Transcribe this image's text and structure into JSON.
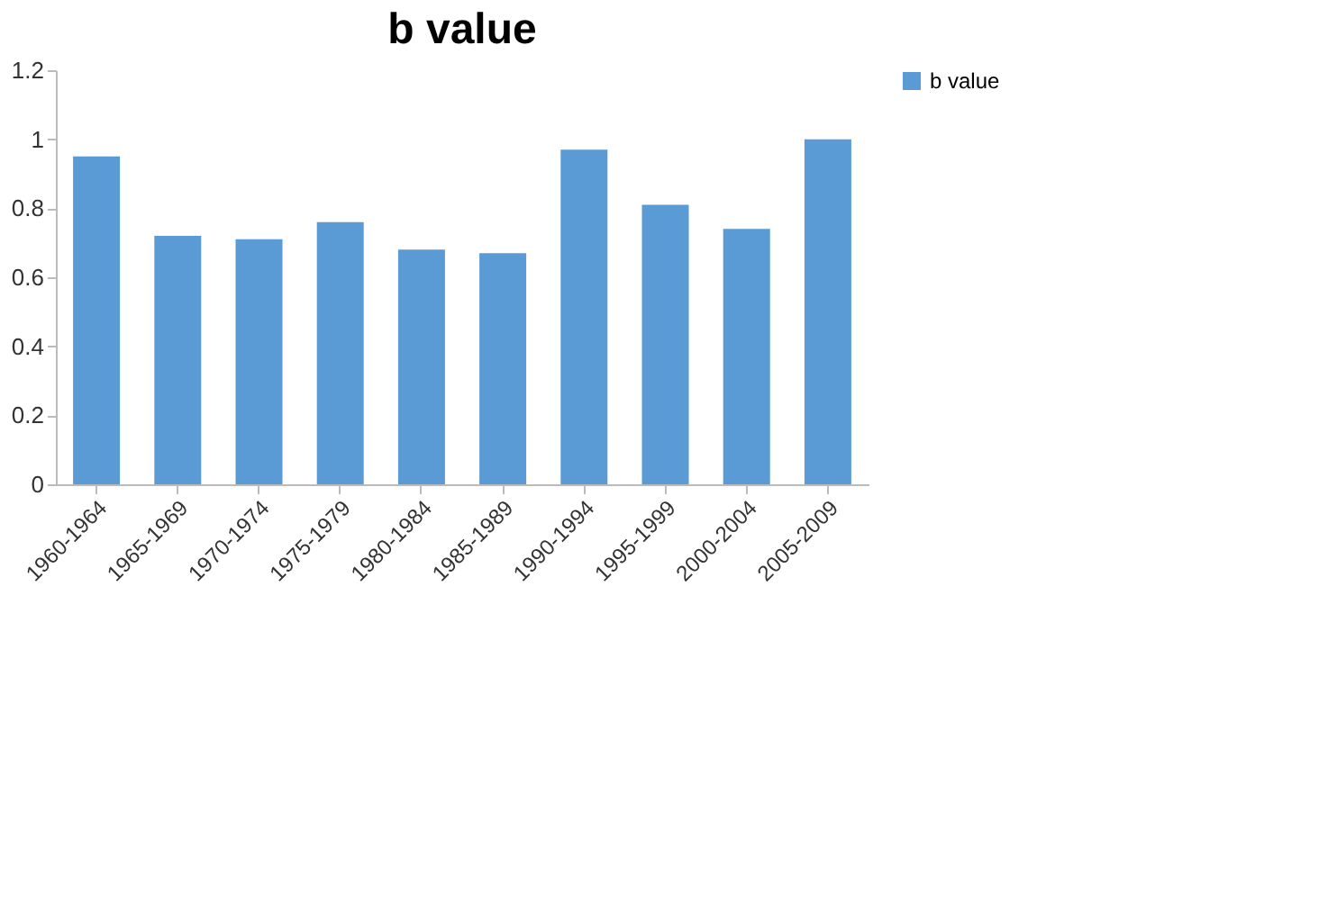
{
  "chart_data": {
    "type": "bar",
    "title": "b value",
    "categories": [
      "1960-1964",
      "1965-1969",
      "1970-1974",
      "1975-1979",
      "1980-1984",
      "1985-1989",
      "1990-1994",
      "1995-1999",
      "2000-2004",
      "2005-2009"
    ],
    "series": [
      {
        "name": "b value",
        "color": "#5b9bd5",
        "values": [
          0.95,
          0.72,
          0.71,
          0.76,
          0.68,
          0.67,
          0.97,
          0.81,
          0.74,
          1.0
        ]
      }
    ],
    "ylim": [
      0,
      1.2
    ],
    "yticks": [
      0,
      0.2,
      0.4,
      0.6,
      0.8,
      1,
      1.2
    ],
    "grid": false,
    "legend": "right"
  }
}
